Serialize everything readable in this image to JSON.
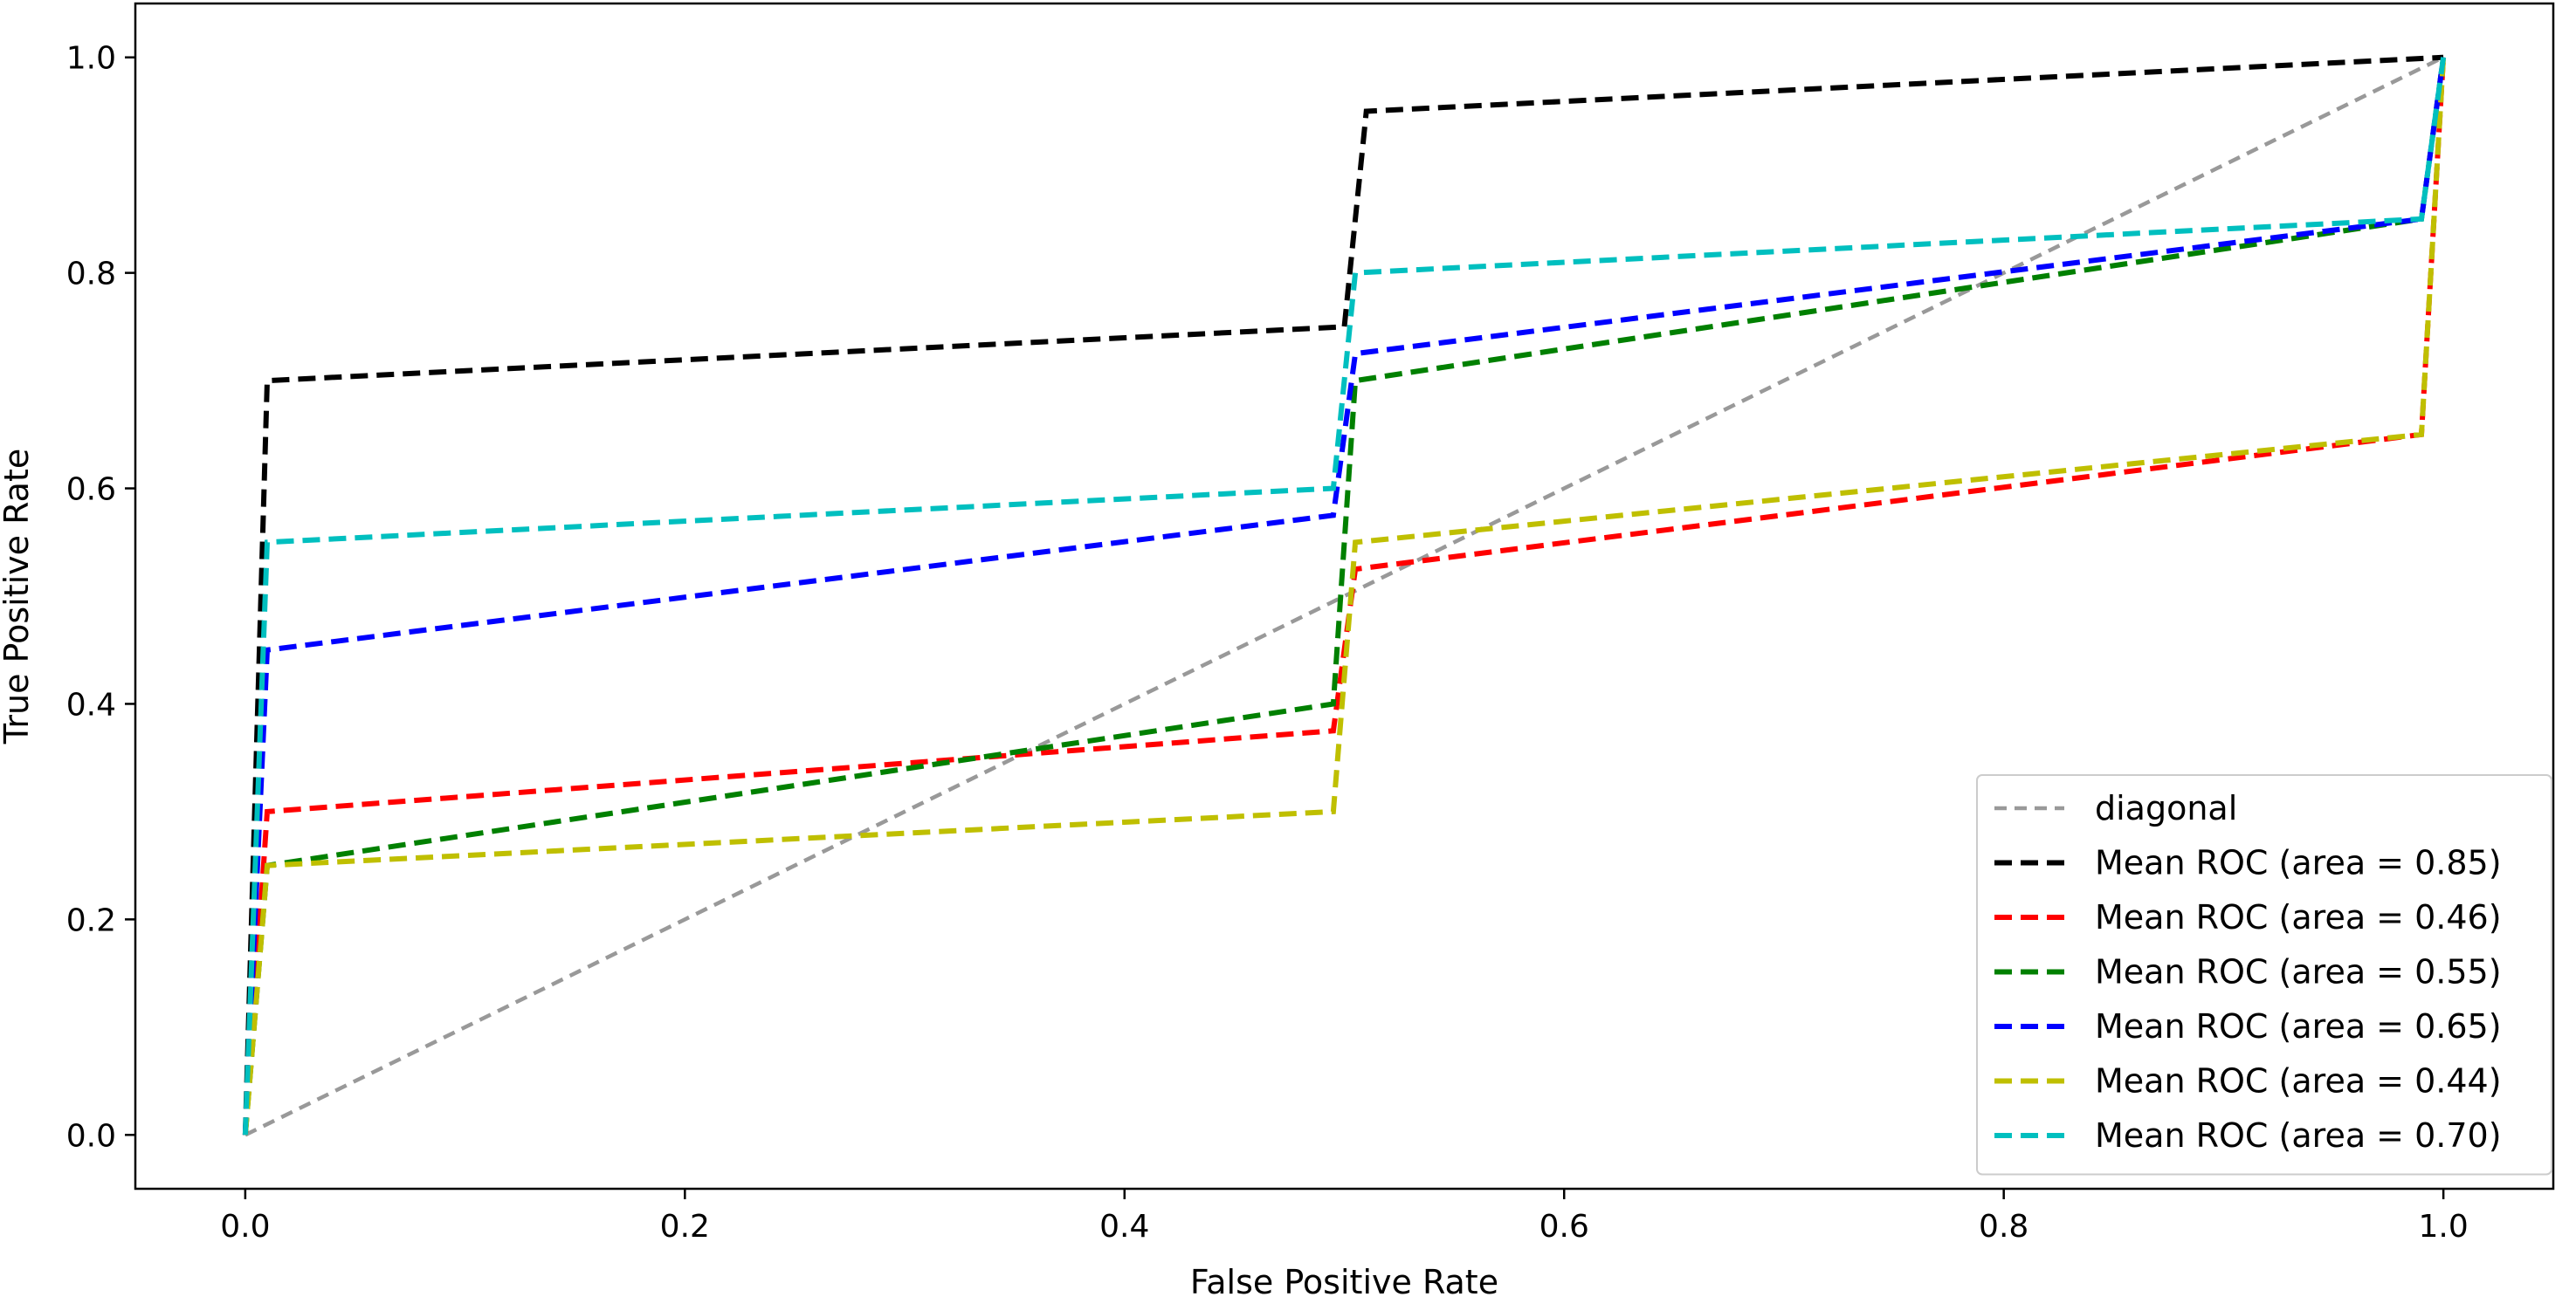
{
  "chart_data": {
    "type": "line",
    "title": "",
    "xlabel": "False Positive Rate",
    "ylabel": "True Positive Rate",
    "xlim": [
      -0.05,
      1.05
    ],
    "ylim": [
      -0.05,
      1.05
    ],
    "xticks": [
      0.0,
      0.2,
      0.4,
      0.6,
      0.8,
      1.0
    ],
    "xtick_labels": [
      "0.0",
      "0.2",
      "0.4",
      "0.6",
      "0.8",
      "1.0"
    ],
    "yticks": [
      0.0,
      0.2,
      0.4,
      0.6,
      0.8,
      1.0
    ],
    "ytick_labels": [
      "0.0",
      "0.2",
      "0.4",
      "0.6",
      "0.8",
      "1.0"
    ],
    "grid": false,
    "legend_position": "lower right",
    "series": [
      {
        "name": "diagonal",
        "color": "#999999",
        "dash": "short",
        "x": [
          0,
          1
        ],
        "y": [
          0,
          1
        ]
      },
      {
        "name": "Mean ROC (area = 0.85)",
        "color": "#000000",
        "dash": "long",
        "x": [
          0,
          0.01,
          0.5,
          0.51,
          1.0
        ],
        "y": [
          0,
          0.7,
          0.75,
          0.95,
          1.0
        ]
      },
      {
        "name": "Mean ROC (area = 0.46)",
        "color": "#ff0000",
        "dash": "long",
        "x": [
          0,
          0.01,
          0.495,
          0.505,
          0.99,
          1.0
        ],
        "y": [
          0,
          0.3,
          0.375,
          0.525,
          0.65,
          1.0
        ]
      },
      {
        "name": "Mean ROC (area = 0.55)",
        "color": "#008000",
        "dash": "long",
        "x": [
          0,
          0.01,
          0.495,
          0.505,
          0.99,
          1.0
        ],
        "y": [
          0,
          0.25,
          0.4,
          0.7,
          0.85,
          1.0
        ]
      },
      {
        "name": "Mean ROC (area = 0.65)",
        "color": "#0000ff",
        "dash": "long",
        "x": [
          0,
          0.01,
          0.495,
          0.505,
          0.99,
          1.0
        ],
        "y": [
          0,
          0.45,
          0.575,
          0.725,
          0.85,
          1.0
        ]
      },
      {
        "name": "Mean ROC (area = 0.44)",
        "color": "#bfbf00",
        "dash": "long",
        "x": [
          0,
          0.01,
          0.495,
          0.505,
          0.99,
          1.0
        ],
        "y": [
          0,
          0.25,
          0.3,
          0.55,
          0.65,
          1.0
        ]
      },
      {
        "name": "Mean ROC (area = 0.70)",
        "color": "#00bfbf",
        "dash": "long",
        "x": [
          0,
          0.01,
          0.495,
          0.505,
          0.99,
          1.0
        ],
        "y": [
          0,
          0.55,
          0.6,
          0.8,
          0.85,
          1.0
        ]
      }
    ]
  }
}
